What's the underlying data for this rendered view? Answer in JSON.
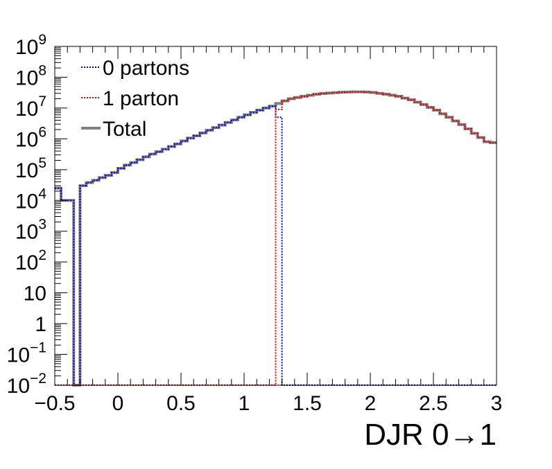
{
  "chart_data": {
    "type": "line",
    "title": "",
    "xlabel": "DJR 0→1",
    "ylabel": "",
    "x_scale": "linear",
    "y_scale": "log",
    "xlim": [
      -0.5,
      3.0
    ],
    "ylim": [
      0.01,
      1000000000
    ],
    "x_ticks": [
      {
        "value": -0.5,
        "label": "−0.5"
      },
      {
        "value": 0,
        "label": "0"
      },
      {
        "value": 0.5,
        "label": "0.5"
      },
      {
        "value": 1,
        "label": "1"
      },
      {
        "value": 1.5,
        "label": "1.5"
      },
      {
        "value": 2,
        "label": "2"
      },
      {
        "value": 2.5,
        "label": "2.5"
      },
      {
        "value": 3,
        "label": "3"
      }
    ],
    "y_ticks": [
      {
        "value": 0.01,
        "base": "10",
        "exp": "−2"
      },
      {
        "value": 0.1,
        "base": "10",
        "exp": "−1"
      },
      {
        "value": 1,
        "base": "1",
        "exp": ""
      },
      {
        "value": 10,
        "base": "10",
        "exp": ""
      },
      {
        "value": 100,
        "base": "10",
        "exp": "2"
      },
      {
        "value": 1000,
        "base": "10",
        "exp": "3"
      },
      {
        "value": 10000,
        "base": "10",
        "exp": "4"
      },
      {
        "value": 100000,
        "base": "10",
        "exp": "5"
      },
      {
        "value": 1000000,
        "base": "10",
        "exp": "6"
      },
      {
        "value": 10000000,
        "base": "10",
        "exp": "7"
      },
      {
        "value": 100000000,
        "base": "10",
        "exp": "8"
      },
      {
        "value": 1000000000,
        "base": "10",
        "exp": "9"
      }
    ],
    "grid": false,
    "legend_position": "top-left",
    "bin_width": 0.05,
    "series": [
      {
        "name": "0 partons",
        "color": "#0000cc",
        "style": "dotted",
        "bins": [
          [
            -0.5,
            25000
          ],
          [
            -0.45,
            10000
          ],
          [
            -0.4,
            10000
          ],
          [
            -0.35,
            0.01
          ],
          [
            -0.3,
            30000
          ],
          [
            -0.25,
            38000
          ],
          [
            -0.2,
            45000
          ],
          [
            -0.15,
            55000
          ],
          [
            -0.1,
            65000
          ],
          [
            -0.05,
            80000
          ],
          [
            0.0,
            110000
          ],
          [
            0.05,
            140000
          ],
          [
            0.1,
            170000
          ],
          [
            0.15,
            210000
          ],
          [
            0.2,
            260000
          ],
          [
            0.25,
            320000
          ],
          [
            0.3,
            380000
          ],
          [
            0.35,
            460000
          ],
          [
            0.4,
            560000
          ],
          [
            0.45,
            680000
          ],
          [
            0.5,
            850000
          ],
          [
            0.55,
            1050000
          ],
          [
            0.6,
            1250000
          ],
          [
            0.65,
            1550000
          ],
          [
            0.7,
            1900000
          ],
          [
            0.75,
            2300000
          ],
          [
            0.8,
            2800000
          ],
          [
            0.85,
            3400000
          ],
          [
            0.9,
            4100000
          ],
          [
            0.95,
            5000000
          ],
          [
            1.0,
            6000000
          ],
          [
            1.05,
            7200000
          ],
          [
            1.1,
            8500000
          ],
          [
            1.15,
            10000000
          ],
          [
            1.2,
            11500000
          ],
          [
            1.25,
            5000000
          ],
          [
            1.3,
            0.01
          ],
          [
            1.35,
            0.01
          ],
          [
            1.4,
            0.01
          ],
          [
            1.45,
            0.01
          ],
          [
            1.5,
            0.01
          ],
          [
            1.55,
            0.01
          ],
          [
            1.6,
            0.01
          ],
          [
            1.65,
            0.01
          ],
          [
            1.7,
            0.01
          ],
          [
            1.75,
            0.01
          ],
          [
            1.8,
            0.01
          ],
          [
            1.85,
            0.01
          ],
          [
            1.9,
            0.01
          ],
          [
            1.95,
            0.01
          ],
          [
            2.0,
            0.01
          ],
          [
            2.05,
            0.01
          ],
          [
            2.1,
            0.01
          ],
          [
            2.15,
            0.01
          ],
          [
            2.2,
            0.01
          ],
          [
            2.25,
            0.01
          ],
          [
            2.3,
            0.01
          ],
          [
            2.35,
            0.01
          ],
          [
            2.4,
            0.01
          ],
          [
            2.45,
            0.01
          ],
          [
            2.5,
            0.01
          ],
          [
            2.55,
            0.01
          ],
          [
            2.6,
            0.01
          ],
          [
            2.65,
            0.01
          ],
          [
            2.7,
            0.01
          ],
          [
            2.75,
            0.01
          ],
          [
            2.8,
            0.01
          ],
          [
            2.85,
            0.01
          ],
          [
            2.9,
            0.01
          ],
          [
            2.95,
            0.01
          ]
        ]
      },
      {
        "name": "1 parton",
        "color": "#dd0000",
        "style": "dotted",
        "bins": [
          [
            -0.5,
            0.01
          ],
          [
            -0.45,
            0.01
          ],
          [
            -0.4,
            0.01
          ],
          [
            -0.35,
            0.01
          ],
          [
            -0.3,
            0.01
          ],
          [
            -0.25,
            0.01
          ],
          [
            -0.2,
            0.01
          ],
          [
            -0.15,
            0.01
          ],
          [
            -0.1,
            0.01
          ],
          [
            -0.05,
            0.01
          ],
          [
            0.0,
            0.01
          ],
          [
            0.05,
            0.01
          ],
          [
            0.1,
            0.01
          ],
          [
            0.15,
            0.01
          ],
          [
            0.2,
            0.01
          ],
          [
            0.25,
            0.01
          ],
          [
            0.3,
            0.01
          ],
          [
            0.35,
            0.01
          ],
          [
            0.4,
            0.01
          ],
          [
            0.45,
            0.01
          ],
          [
            0.5,
            0.01
          ],
          [
            0.55,
            0.01
          ],
          [
            0.6,
            0.01
          ],
          [
            0.65,
            0.01
          ],
          [
            0.7,
            0.01
          ],
          [
            0.75,
            0.01
          ],
          [
            0.8,
            0.01
          ],
          [
            0.85,
            0.01
          ],
          [
            0.9,
            0.01
          ],
          [
            0.95,
            0.01
          ],
          [
            1.0,
            0.01
          ],
          [
            1.05,
            0.01
          ],
          [
            1.1,
            0.01
          ],
          [
            1.15,
            0.01
          ],
          [
            1.2,
            0.01
          ],
          [
            1.25,
            9000000
          ],
          [
            1.3,
            17000000
          ],
          [
            1.35,
            20000000
          ],
          [
            1.4,
            22000000
          ],
          [
            1.45,
            24000000
          ],
          [
            1.5,
            26000000
          ],
          [
            1.55,
            28000000
          ],
          [
            1.6,
            29500000
          ],
          [
            1.65,
            30500000
          ],
          [
            1.7,
            31500000
          ],
          [
            1.75,
            32500000
          ],
          [
            1.8,
            33000000
          ],
          [
            1.85,
            33500000
          ],
          [
            1.9,
            33500000
          ],
          [
            1.95,
            33000000
          ],
          [
            2.0,
            32000000
          ],
          [
            2.05,
            30000000
          ],
          [
            2.1,
            28000000
          ],
          [
            2.15,
            26000000
          ],
          [
            2.2,
            24000000
          ],
          [
            2.25,
            21000000
          ],
          [
            2.3,
            18500000
          ],
          [
            2.35,
            15500000
          ],
          [
            2.4,
            13000000
          ],
          [
            2.45,
            10500000
          ],
          [
            2.5,
            8500000
          ],
          [
            2.55,
            6500000
          ],
          [
            2.6,
            5000000
          ],
          [
            2.65,
            3800000
          ],
          [
            2.7,
            2900000
          ],
          [
            2.75,
            2100000
          ],
          [
            2.8,
            1500000
          ],
          [
            2.85,
            1100000
          ],
          [
            2.9,
            800000
          ],
          [
            2.95,
            750000
          ]
        ]
      },
      {
        "name": "Total",
        "color": "#808080",
        "style": "solid",
        "bins": [
          [
            -0.5,
            25000
          ],
          [
            -0.45,
            10000
          ],
          [
            -0.4,
            10000
          ],
          [
            -0.35,
            0.01
          ],
          [
            -0.3,
            30000
          ],
          [
            -0.25,
            38000
          ],
          [
            -0.2,
            45000
          ],
          [
            -0.15,
            55000
          ],
          [
            -0.1,
            65000
          ],
          [
            -0.05,
            80000
          ],
          [
            0.0,
            110000
          ],
          [
            0.05,
            140000
          ],
          [
            0.1,
            170000
          ],
          [
            0.15,
            210000
          ],
          [
            0.2,
            260000
          ],
          [
            0.25,
            320000
          ],
          [
            0.3,
            380000
          ],
          [
            0.35,
            460000
          ],
          [
            0.4,
            560000
          ],
          [
            0.45,
            680000
          ],
          [
            0.5,
            850000
          ],
          [
            0.55,
            1050000
          ],
          [
            0.6,
            1250000
          ],
          [
            0.65,
            1550000
          ],
          [
            0.7,
            1900000
          ],
          [
            0.75,
            2300000
          ],
          [
            0.8,
            2800000
          ],
          [
            0.85,
            3400000
          ],
          [
            0.9,
            4100000
          ],
          [
            0.95,
            5000000
          ],
          [
            1.0,
            6000000
          ],
          [
            1.05,
            7200000
          ],
          [
            1.1,
            8500000
          ],
          [
            1.15,
            10000000
          ],
          [
            1.2,
            11500000
          ],
          [
            1.25,
            14000000
          ],
          [
            1.3,
            17000000
          ],
          [
            1.35,
            20000000
          ],
          [
            1.4,
            22000000
          ],
          [
            1.45,
            24000000
          ],
          [
            1.5,
            26000000
          ],
          [
            1.55,
            28000000
          ],
          [
            1.6,
            29500000
          ],
          [
            1.65,
            30500000
          ],
          [
            1.7,
            31500000
          ],
          [
            1.75,
            32500000
          ],
          [
            1.8,
            33000000
          ],
          [
            1.85,
            33500000
          ],
          [
            1.9,
            33500000
          ],
          [
            1.95,
            33000000
          ],
          [
            2.0,
            32000000
          ],
          [
            2.05,
            30000000
          ],
          [
            2.1,
            28000000
          ],
          [
            2.15,
            26000000
          ],
          [
            2.2,
            24000000
          ],
          [
            2.25,
            21000000
          ],
          [
            2.3,
            18500000
          ],
          [
            2.35,
            15500000
          ],
          [
            2.4,
            13000000
          ],
          [
            2.45,
            10500000
          ],
          [
            2.5,
            8500000
          ],
          [
            2.55,
            6500000
          ],
          [
            2.6,
            5000000
          ],
          [
            2.65,
            3800000
          ],
          [
            2.7,
            2900000
          ],
          [
            2.75,
            2100000
          ],
          [
            2.8,
            1500000
          ],
          [
            2.85,
            1100000
          ],
          [
            2.9,
            800000
          ],
          [
            2.95,
            750000
          ]
        ]
      }
    ]
  }
}
